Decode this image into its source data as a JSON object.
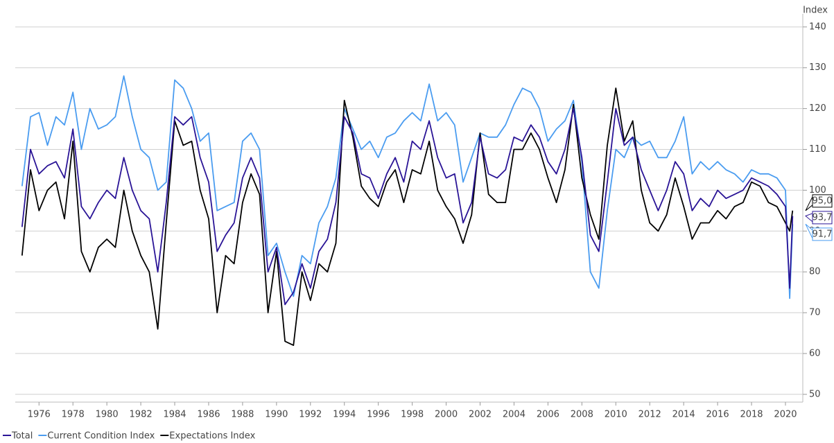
{
  "chart_data": {
    "type": "line",
    "y_label": "Index",
    "x": [
      1975.0,
      1975.5,
      1976.0,
      1976.5,
      1977.0,
      1977.5,
      1978.0,
      1978.5,
      1979.0,
      1979.5,
      1980.0,
      1980.5,
      1981.0,
      1981.5,
      1982.0,
      1982.5,
      1983.0,
      1983.5,
      1984.0,
      1984.5,
      1985.0,
      1985.5,
      1986.0,
      1986.5,
      1987.0,
      1987.5,
      1988.0,
      1988.5,
      1989.0,
      1989.5,
      1990.0,
      1990.5,
      1991.0,
      1991.5,
      1992.0,
      1992.5,
      1993.0,
      1993.5,
      1994.0,
      1994.5,
      1995.0,
      1995.5,
      1996.0,
      1996.5,
      1997.0,
      1997.5,
      1998.0,
      1998.5,
      1999.0,
      1999.5,
      2000.0,
      2000.5,
      2001.0,
      2001.5,
      2002.0,
      2002.5,
      2003.0,
      2003.5,
      2004.0,
      2004.5,
      2005.0,
      2005.5,
      2006.0,
      2006.5,
      2007.0,
      2007.5,
      2008.0,
      2008.5,
      2009.0,
      2009.5,
      2010.0,
      2010.5,
      2011.0,
      2011.5,
      2012.0,
      2012.5,
      2013.0,
      2013.5,
      2014.0,
      2014.5,
      2015.0,
      2015.5,
      2016.0,
      2016.5,
      2017.0,
      2017.5,
      2018.0,
      2018.5,
      2019.0,
      2019.5,
      2020.0,
      2020.25,
      2020.42
    ],
    "series": [
      {
        "name": "Total",
        "color": "#2a1496",
        "end_label": {
          "value": 93.7,
          "label": "93,7"
        },
        "values": [
          91,
          110,
          104,
          106,
          107,
          103,
          115,
          96,
          93,
          97,
          100,
          98,
          108,
          100,
          95,
          93,
          80,
          97,
          118,
          116,
          118,
          108,
          102,
          85,
          89,
          92,
          103,
          108,
          103,
          80,
          86,
          72,
          75,
          82,
          76,
          85,
          88,
          97,
          118,
          114,
          104,
          103,
          98,
          104,
          108,
          102,
          112,
          110,
          117,
          108,
          103,
          104,
          92,
          97,
          113,
          104,
          103,
          105,
          113,
          112,
          116,
          113,
          107,
          104,
          110,
          120,
          108,
          89,
          85,
          102,
          120,
          111,
          113,
          105,
          100,
          95,
          100,
          107,
          104,
          95,
          98,
          96,
          100,
          98,
          99,
          100,
          103,
          102,
          101,
          99,
          96,
          76,
          93.7
        ]
      },
      {
        "name": "Current Condition Index",
        "color": "#4a9cf0",
        "end_label": {
          "value": 91.7,
          "label": "91,7"
        },
        "values": [
          101,
          118,
          119,
          111,
          118,
          116,
          124,
          110,
          120,
          115,
          116,
          118,
          128,
          118,
          110,
          108,
          100,
          102,
          127,
          125,
          120,
          112,
          114,
          95,
          96,
          97,
          112,
          114,
          110,
          84,
          87,
          80,
          74,
          84,
          82,
          92,
          96,
          103,
          120,
          115,
          110,
          112,
          108,
          113,
          114,
          117,
          119,
          117,
          126,
          117,
          119,
          116,
          102,
          108,
          114,
          113,
          113,
          116,
          121,
          125,
          124,
          120,
          112,
          115,
          117,
          122,
          107,
          80,
          76,
          95,
          110,
          108,
          113,
          111,
          112,
          108,
          108,
          112,
          118,
          104,
          107,
          105,
          107,
          105,
          104,
          102,
          105,
          104,
          104,
          103,
          100,
          73.5,
          91.7
        ]
      },
      {
        "name": "Expectations Index",
        "color": "#000000",
        "end_label": {
          "value": 95.0,
          "label": "95,0"
        },
        "values": [
          84,
          105,
          95,
          100,
          102,
          93,
          112,
          85,
          80,
          86,
          88,
          86,
          100,
          90,
          84,
          80,
          66,
          92,
          117,
          111,
          112,
          100,
          93,
          70,
          84,
          82,
          97,
          104,
          99,
          70,
          85,
          63,
          62,
          80,
          73,
          82,
          80,
          87,
          122,
          113,
          101,
          98,
          96,
          102,
          105,
          97,
          105,
          104,
          112,
          100,
          96,
          93,
          87,
          94,
          114,
          99,
          97,
          97,
          110,
          110,
          114,
          110,
          103,
          97,
          105,
          121,
          103,
          94,
          88,
          111,
          125,
          112,
          117,
          100,
          92,
          90,
          94,
          103,
          96,
          88,
          92,
          92,
          95,
          93,
          96,
          97,
          102,
          101,
          97,
          96,
          92,
          90,
          95
        ]
      }
    ],
    "xlim": [
      1974.6,
      2020.9
    ],
    "xticks": [
      1976,
      1978,
      1980,
      1982,
      1984,
      1986,
      1988,
      1990,
      1992,
      1994,
      1996,
      1998,
      2000,
      2002,
      2004,
      2006,
      2008,
      2010,
      2012,
      2014,
      2016,
      2018,
      2020
    ],
    "ylim": [
      48.1,
      143.2
    ],
    "yticks": [
      50,
      60,
      70,
      80,
      90,
      100,
      110,
      120,
      130,
      140
    ],
    "grid": true,
    "legend": "bottom"
  }
}
